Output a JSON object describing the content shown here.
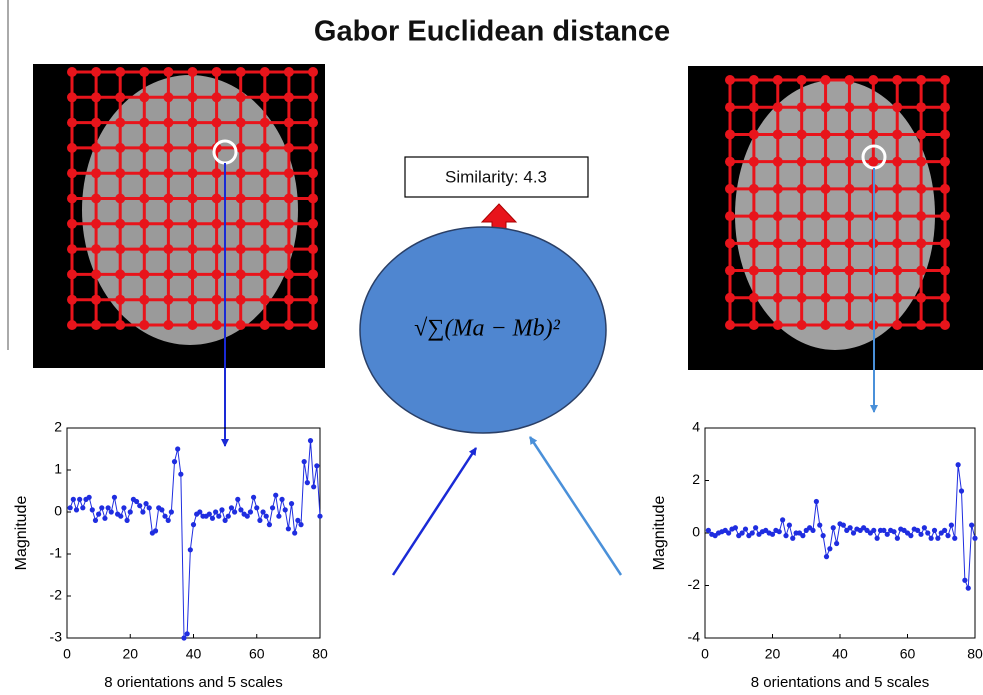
{
  "title": "Gabor Euclidean distance",
  "similarity": "Similarity: 4.3",
  "formula": "√∑(Ma − Mb)²",
  "chart_data": [
    {
      "type": "line",
      "xlabel": "8 orientations and 5 scales",
      "ylabel": "Magnitude",
      "x": [
        1,
        2,
        3,
        4,
        5,
        6,
        7,
        8,
        9,
        10,
        11,
        12,
        13,
        14,
        15,
        16,
        17,
        18,
        19,
        20,
        21,
        22,
        23,
        24,
        25,
        26,
        27,
        28,
        29,
        30,
        31,
        32,
        33,
        34,
        35,
        36,
        37,
        38,
        39,
        40,
        41,
        42,
        43,
        44,
        45,
        46,
        47,
        48,
        49,
        50,
        51,
        52,
        53,
        54,
        55,
        56,
        57,
        58,
        59,
        60,
        61,
        62,
        63,
        64,
        65,
        66,
        67,
        68,
        69,
        70,
        71,
        72,
        73,
        74,
        75,
        76,
        77,
        78,
        79,
        80
      ],
      "values": [
        0.1,
        0.3,
        0.05,
        0.3,
        0.1,
        0.3,
        0.35,
        0.05,
        -0.2,
        -0.05,
        0.1,
        -0.15,
        0.1,
        0.0,
        0.35,
        -0.05,
        -0.1,
        0.1,
        -0.2,
        0.0,
        0.3,
        0.25,
        0.15,
        0.0,
        0.2,
        0.1,
        -0.5,
        -0.45,
        0.1,
        0.05,
        -0.1,
        -0.2,
        0.0,
        1.2,
        1.5,
        0.9,
        -3.0,
        -2.9,
        -0.9,
        -0.3,
        -0.05,
        0.0,
        -0.1,
        -0.1,
        -0.05,
        -0.15,
        0.0,
        -0.1,
        0.05,
        -0.2,
        -0.1,
        0.1,
        0.0,
        0.3,
        0.05,
        -0.05,
        -0.1,
        0.0,
        0.35,
        0.1,
        -0.2,
        0.0,
        -0.1,
        -0.3,
        0.1,
        0.4,
        -0.1,
        0.3,
        0.05,
        -0.4,
        0.2,
        -0.5,
        -0.2,
        -0.3,
        1.2,
        0.7,
        1.7,
        0.6,
        1.1,
        -0.1
      ],
      "color": "#1f2de0",
      "xlim": [
        0,
        80
      ],
      "xticks": [
        0,
        20,
        40,
        60,
        80
      ],
      "ylim": [
        -3,
        2
      ],
      "yticks": [
        -3,
        -2,
        -1,
        0,
        1,
        2
      ]
    },
    {
      "type": "line",
      "xlabel": "8 orientations and 5 scales",
      "ylabel": "Magnitude",
      "x": [
        1,
        2,
        3,
        4,
        5,
        6,
        7,
        8,
        9,
        10,
        11,
        12,
        13,
        14,
        15,
        16,
        17,
        18,
        19,
        20,
        21,
        22,
        23,
        24,
        25,
        26,
        27,
        28,
        29,
        30,
        31,
        32,
        33,
        34,
        35,
        36,
        37,
        38,
        39,
        40,
        41,
        42,
        43,
        44,
        45,
        46,
        47,
        48,
        49,
        50,
        51,
        52,
        53,
        54,
        55,
        56,
        57,
        58,
        59,
        60,
        61,
        62,
        63,
        64,
        65,
        66,
        67,
        68,
        69,
        70,
        71,
        72,
        73,
        74,
        75,
        76,
        77,
        78,
        79,
        80
      ],
      "values": [
        0.1,
        -0.05,
        -0.1,
        0.0,
        0.05,
        0.1,
        0.0,
        0.15,
        0.2,
        -0.1,
        0.0,
        0.15,
        -0.1,
        0.0,
        0.2,
        -0.05,
        0.05,
        0.1,
        0.0,
        -0.05,
        0.1,
        0.05,
        0.5,
        -0.1,
        0.3,
        -0.2,
        0.0,
        0.0,
        -0.1,
        0.1,
        0.2,
        0.1,
        1.2,
        0.3,
        -0.1,
        -0.9,
        -0.6,
        0.2,
        -0.4,
        0.35,
        0.3,
        0.1,
        0.2,
        0.0,
        0.15,
        0.1,
        0.2,
        0.1,
        0.0,
        0.1,
        -0.2,
        0.1,
        0.1,
        -0.05,
        0.1,
        0.05,
        -0.2,
        0.15,
        0.1,
        0.0,
        -0.1,
        0.15,
        0.1,
        -0.05,
        0.2,
        0.0,
        -0.2,
        0.1,
        -0.2,
        0.0,
        0.1,
        -0.1,
        0.3,
        -0.2,
        2.6,
        1.6,
        -1.8,
        -2.1,
        0.3,
        -0.2
      ],
      "color": "#1f2de0",
      "xlim": [
        0,
        80
      ],
      "xticks": [
        0,
        20,
        40,
        60,
        80
      ],
      "ylim": [
        -4,
        4
      ],
      "yticks": [
        -4,
        -2,
        0,
        2,
        4
      ]
    }
  ]
}
